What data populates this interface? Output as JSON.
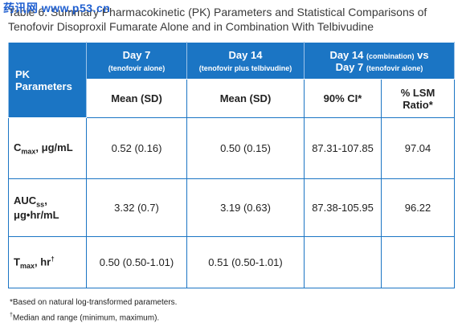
{
  "watermark": "药讯网 www.p53.cn",
  "title": "Table 6. Summary Pharmacokinetic (PK) Parameters and Statistical Comparisons of Tenofovir Disoproxil Fumarate Alone and in Combination With Telbivudine",
  "table": {
    "header": {
      "pk": "PK Parameters",
      "day7": {
        "label": "Day 7",
        "note": "(tenofovir alone)"
      },
      "day14": {
        "label": "Day 14",
        "note": "(tenofovir plus telbivudine)"
      },
      "comparison": [
        "Day 14",
        "(combination)",
        "vs",
        "Day 7",
        "(tenofovir alone)"
      ],
      "mean7": "Mean (SD)",
      "mean14": "Mean (SD)",
      "ci": "90% CI*",
      "ratio": "% LSM Ratio*"
    },
    "rows": [
      {
        "param": [
          "C",
          "max",
          ", μg/mL"
        ],
        "cells": [
          "0.52 (0.16)",
          "0.50 (0.15)",
          "87.31-107.85",
          "97.04"
        ]
      },
      {
        "param": [
          "AUC",
          "ss",
          ",",
          "μg•hr/mL"
        ],
        "cells": [
          "3.32 (0.7)",
          "3.19 (0.63)",
          "87.38-105.95",
          "96.22"
        ]
      },
      {
        "param": [
          "T",
          "max",
          ", hr",
          "†"
        ],
        "cells": [
          "0.50 (0.50-1.01)",
          "0.51 (0.50-1.01)"
        ]
      }
    ]
  },
  "footnotes": [
    "*Based on natural log-transformed parameters.",
    {
      "mark": "†",
      "text": "Median and range (minimum, maximum)."
    }
  ]
}
